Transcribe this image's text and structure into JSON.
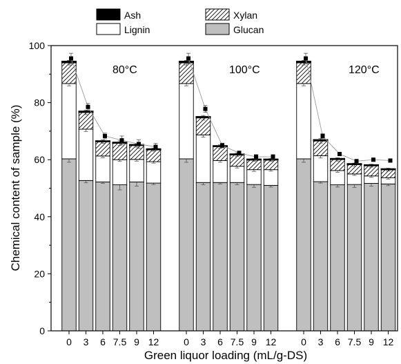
{
  "chart_data": {
    "type": "bar",
    "stacked": true,
    "xlabel": "Green liquor loading (mL/g-DS)",
    "ylabel": "Chemical content of sample (%)",
    "ylim": [
      0,
      100
    ],
    "yticks": [
      0,
      20,
      40,
      60,
      80,
      100
    ],
    "legend": {
      "placement": "top",
      "entries": [
        {
          "name": "Ash",
          "swatch": "solid",
          "color": "#000000"
        },
        {
          "name": "Xylan",
          "swatch": "hatch",
          "color": "#ffffff"
        },
        {
          "name": "Lignin",
          "swatch": "solid",
          "color": "#ffffff"
        },
        {
          "name": "Glucan",
          "swatch": "solid",
          "color": "#bfbfbf"
        }
      ]
    },
    "groups": [
      {
        "label": "80°C",
        "categories": [
          "0",
          "3",
          "6",
          "7.5",
          "9",
          "12"
        ],
        "series": [
          {
            "name": "Glucan",
            "values": [
              60.3,
              52.7,
              52.2,
              51.2,
              52.2,
              51.8
            ],
            "errors": [
              1.2,
              0.8,
              0.5,
              1.8,
              1.5,
              0.5
            ]
          },
          {
            "name": "Lignin",
            "values": [
              26.4,
              18.0,
              9.1,
              8.8,
              7.9,
              7.5
            ],
            "errors": [
              0.8,
              0.8,
              0.6,
              0.6,
              0.6,
              0.5
            ]
          },
          {
            "name": "Xylan",
            "values": [
              7.3,
              5.9,
              5.0,
              5.8,
              4.9,
              4.2
            ],
            "errors": [
              0.8,
              0.8,
              0.6,
              0.8,
              0.6,
              0.5
            ]
          },
          {
            "name": "Ash",
            "values": [
              0.5,
              0.4,
              0.3,
              0.3,
              0.3,
              0.3
            ],
            "errors": [
              0,
              0,
              0,
              0,
              0,
              0
            ]
          }
        ],
        "total_markers": {
          "values": [
            95.5,
            78.5,
            68.3,
            66.8,
            65.5,
            64.5
          ],
          "errors": [
            1.8,
            1.2,
            1.0,
            1.5,
            1.5,
            1.2
          ]
        }
      },
      {
        "label": "100°C",
        "categories": [
          "0",
          "3",
          "6",
          "7.5",
          "9",
          "12"
        ],
        "series": [
          {
            "name": "Glucan",
            "values": [
              60.3,
              52.0,
              52.0,
              52.0,
              51.3,
              51.0
            ],
            "errors": [
              1.2,
              0.8,
              0.5,
              0.8,
              1.0,
              0.6
            ]
          },
          {
            "name": "Lignin",
            "values": [
              26.4,
              16.7,
              7.7,
              5.7,
              5.2,
              5.5
            ],
            "errors": [
              0.8,
              0.8,
              0.6,
              0.6,
              0.6,
              0.5
            ]
          },
          {
            "name": "Xylan",
            "values": [
              7.3,
              6.0,
              4.9,
              4.0,
              3.4,
              3.4
            ],
            "errors": [
              0.8,
              0.8,
              0.6,
              0.6,
              0.5,
              0.5
            ]
          },
          {
            "name": "Ash",
            "values": [
              0.5,
              0.4,
              0.3,
              0.3,
              0.3,
              0.3
            ],
            "errors": [
              0,
              0,
              0,
              0,
              0,
              0
            ]
          }
        ],
        "total_markers": {
          "values": [
            95.5,
            77.8,
            65.0,
            62.3,
            61.0,
            61.0
          ],
          "errors": [
            1.8,
            1.2,
            0.8,
            0.8,
            0.8,
            0.8
          ]
        }
      },
      {
        "label": "120°C",
        "categories": [
          "0",
          "3",
          "6",
          "7.5",
          "9",
          "12"
        ],
        "series": [
          {
            "name": "Glucan",
            "values": [
              60.3,
              52.3,
              51.2,
              51.3,
              51.7,
              51.5
            ],
            "errors": [
              1.2,
              0.5,
              0.8,
              1.0,
              1.0,
              0.6
            ]
          },
          {
            "name": "Lignin",
            "values": [
              26.4,
              9.1,
              5.0,
              3.7,
              2.6,
              2.2
            ],
            "errors": [
              0.8,
              0.8,
              0.6,
              0.5,
              0.5,
              0.5
            ]
          },
          {
            "name": "Xylan",
            "values": [
              7.3,
              5.2,
              3.9,
              3.3,
              3.6,
              2.8
            ],
            "errors": [
              0.8,
              0.8,
              0.6,
              0.5,
              0.5,
              0.5
            ]
          },
          {
            "name": "Ash",
            "values": [
              0.5,
              0.4,
              0.3,
              0.3,
              0.3,
              0.3
            ],
            "errors": [
              0,
              0,
              0,
              0,
              0,
              0
            ]
          }
        ],
        "total_markers": {
          "values": [
            95.5,
            68.3,
            62.0,
            59.5,
            60.0,
            59.7
          ],
          "errors": [
            1.8,
            0.8,
            0.6,
            0.6,
            0.6,
            0.6
          ]
        }
      }
    ]
  }
}
